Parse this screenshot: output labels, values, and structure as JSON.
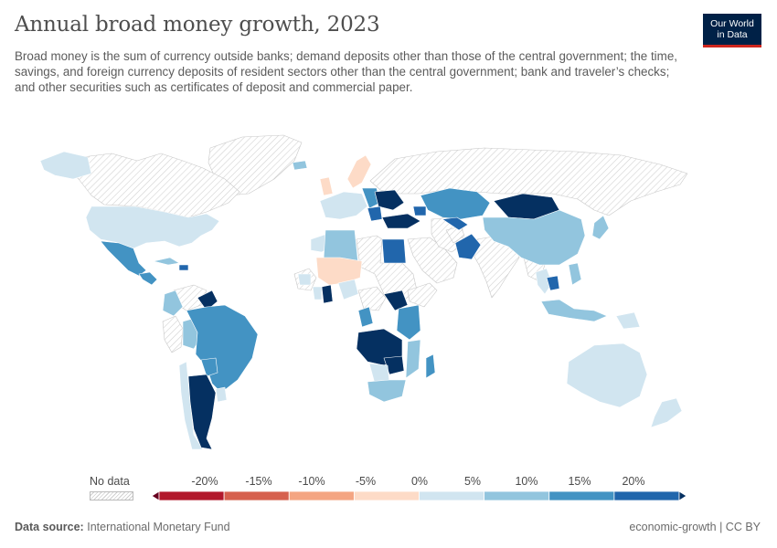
{
  "header": {
    "title": "Annual broad money growth, 2023",
    "subtitle": "Broad money is the sum of currency outside banks; demand deposits other than those of the central government; the time, savings, and foreign currency deposits of resident sectors other than the central government; bank and traveler’s checks; and other securities such as certificates of deposit and commercial paper."
  },
  "logo": {
    "line1": "Our World",
    "line2": "in Data",
    "bg": "#002147",
    "accent": "#ce261e"
  },
  "legend": {
    "no_data_label": "No data",
    "ticks": [
      "-20%",
      "-15%",
      "-10%",
      "-5%",
      "0%",
      "5%",
      "10%",
      "15%",
      "20%"
    ],
    "bins_colors": [
      "#67001f",
      "#b2182b",
      "#d6604d",
      "#f4a582",
      "#fddbc7",
      "#d1e5f0",
      "#92c5de",
      "#4393c3",
      "#2166ac",
      "#053061"
    ]
  },
  "footer": {
    "source_label": "Data source:",
    "source": "International Monetary Fund",
    "right": "economic-growth | CC BY"
  },
  "map": {
    "year": "2023",
    "category_colors": {
      "nodata": "#ececec",
      "neg5_0": "#fddbc7",
      "p0_5": "#d1e5f0",
      "p5_10": "#92c5de",
      "p10_15": "#4393c3",
      "p15_20": "#2166ac",
      "p20_plus": "#053061"
    }
  }
}
